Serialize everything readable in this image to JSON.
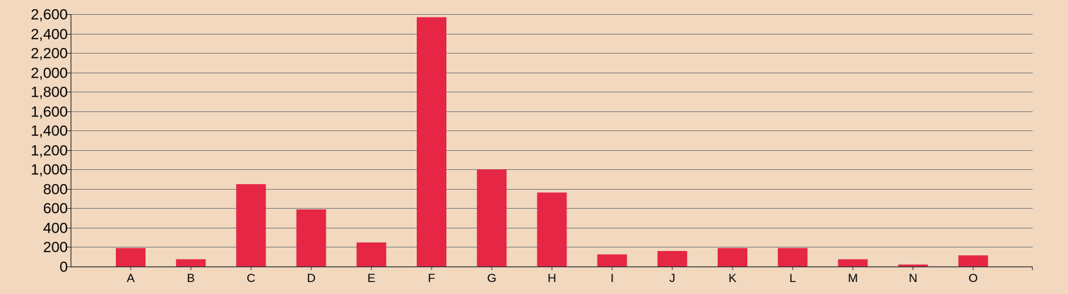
{
  "chart_data": {
    "type": "bar",
    "title": "",
    "xlabel": "",
    "ylabel": "",
    "categories": [
      "A",
      "B",
      "C",
      "D",
      "E",
      "F",
      "G",
      "H",
      "I",
      "J",
      "K",
      "L",
      "M",
      "N",
      "O"
    ],
    "values": [
      190,
      75,
      848,
      588,
      248,
      2568,
      1000,
      762,
      125,
      160,
      190,
      190,
      75,
      20,
      115
    ],
    "ylim": [
      0,
      2600
    ],
    "yticks": [
      0,
      200,
      400,
      600,
      800,
      1000,
      1200,
      1400,
      1600,
      1800,
      2000,
      2200,
      2400,
      2600
    ],
    "ytick_labels": [
      "0",
      "200",
      "400",
      "600",
      "800",
      "1,000",
      "1,200",
      "1,400",
      "1,600",
      "1,800",
      "2,000",
      "2,200",
      "2,400",
      "2,600"
    ],
    "grid": true,
    "legend": "none",
    "colors": {
      "bar": "#e52645",
      "background": "#f1d8bf",
      "grid": "#7f7f7f",
      "axis": "#333333"
    }
  }
}
